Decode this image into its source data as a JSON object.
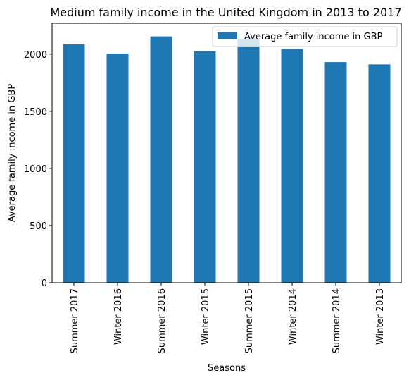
{
  "chart_data": {
    "type": "bar",
    "title": "Medium family income in the United Kingdom in 2013 to 2017",
    "xlabel": "Seasons",
    "ylabel": "Average family income in GBP",
    "categories": [
      "Summer 2017",
      "Winter 2016",
      "Summer 2016",
      "Winter 2015",
      "Summer 2015",
      "Winter 2014",
      "Summer 2014",
      "Winter 2013"
    ],
    "series": [
      {
        "name": "Average family income in GBP",
        "values": [
          2085,
          2005,
          2155,
          2025,
          2130,
          2045,
          1930,
          1910
        ],
        "color": "#1f77b4"
      }
    ],
    "ylim": [
      0,
      2270
    ],
    "yticks": [
      0,
      500,
      1000,
      1500,
      2000
    ],
    "grid": false,
    "legend_position": "top-right"
  }
}
